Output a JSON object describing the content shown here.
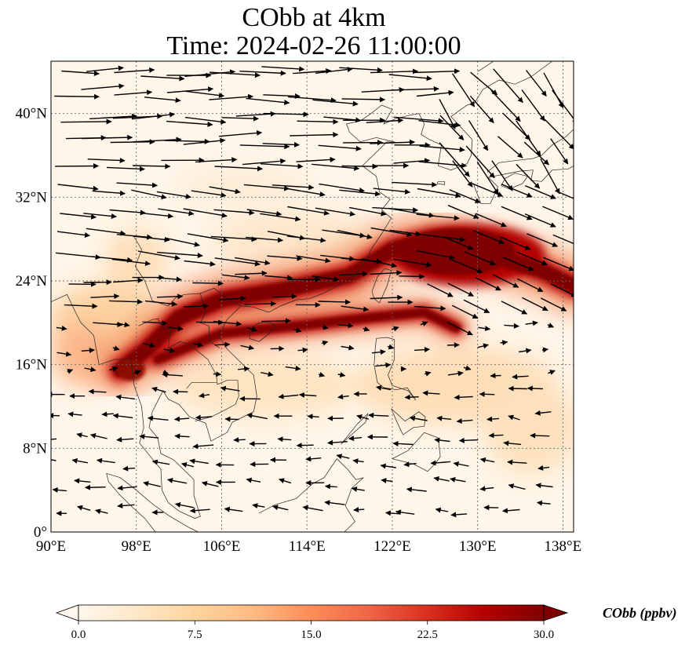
{
  "title": {
    "line1": "CObb at 4km",
    "line2": "Time: 2024-02-26 11:00:00"
  },
  "map": {
    "projection": "PlateCarree",
    "lon_range": [
      90,
      139
    ],
    "lat_range": [
      0,
      45
    ],
    "x_ticks": [
      {
        "value": 90,
        "label": "90°E"
      },
      {
        "value": 98,
        "label": "98°E"
      },
      {
        "value": 106,
        "label": "106°E"
      },
      {
        "value": 114,
        "label": "114°E"
      },
      {
        "value": 122,
        "label": "122°E"
      },
      {
        "value": 130,
        "label": "130°E"
      },
      {
        "value": 138,
        "label": "138°E"
      }
    ],
    "y_ticks": [
      {
        "value": 0,
        "label": "0°"
      },
      {
        "value": 8,
        "label": "8°N"
      },
      {
        "value": 16,
        "label": "16°N"
      },
      {
        "value": 24,
        "label": "24°N"
      },
      {
        "value": 32,
        "label": "32°N"
      },
      {
        "value": 40,
        "label": "40°N"
      }
    ],
    "gridlines": true,
    "field": "CObb",
    "level": "4km",
    "plume_axis": [
      {
        "lon": 96.5,
        "lat": 15.5
      },
      {
        "lon": 99,
        "lat": 17.5
      },
      {
        "lon": 102,
        "lat": 20.5
      },
      {
        "lon": 106,
        "lat": 22.2
      },
      {
        "lon": 112,
        "lat": 23.2
      },
      {
        "lon": 118,
        "lat": 24.5
      },
      {
        "lon": 122,
        "lat": 27
      },
      {
        "lon": 126,
        "lat": 28
      },
      {
        "lon": 131,
        "lat": 26.5
      },
      {
        "lon": 136,
        "lat": 25
      },
      {
        "lon": 139,
        "lat": 23.5
      }
    ],
    "plume_lower_branch": [
      {
        "lon": 100,
        "lat": 16.5
      },
      {
        "lon": 106,
        "lat": 19
      },
      {
        "lon": 114,
        "lat": 19.8
      },
      {
        "lon": 120,
        "lat": 20.5
      },
      {
        "lon": 125,
        "lat": 21
      },
      {
        "lon": 128,
        "lat": 19.5
      }
    ]
  },
  "colorbar": {
    "label": "CObb (ppbv)",
    "min": 0.0,
    "max": 30.0,
    "extend": "both",
    "colormap": "OrRd",
    "colors": [
      "#fff7ec",
      "#fee8c8",
      "#fdd49e",
      "#fdbb84",
      "#fc8d59",
      "#ef6548",
      "#d7301f",
      "#b30000",
      "#7f0000"
    ],
    "ticks": [
      "0.0",
      "7.5",
      "15.0",
      "22.5",
      "30.0"
    ]
  }
}
